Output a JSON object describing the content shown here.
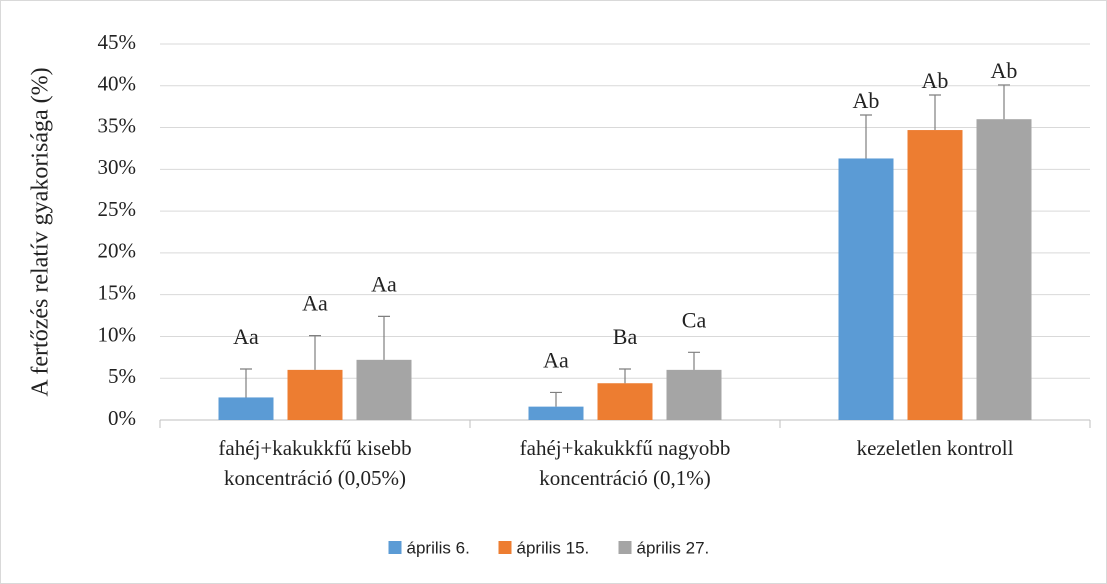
{
  "chart_data": {
    "type": "bar",
    "y_label": "A fertőzés relatív gyakorisága (%)",
    "categories": [
      [
        "fahéj+kakukkfű kisebb",
        "koncentráció (0,05%)"
      ],
      [
        "fahéj+kakukkfű nagyobb",
        "koncentráció (0,1%)"
      ],
      [
        "kezeletlen kontroll"
      ]
    ],
    "series": [
      {
        "name": "április 6.",
        "color": "#5b9bd5",
        "values": [
          2.7,
          1.6,
          31.3
        ],
        "errors": [
          3.4,
          1.7,
          5.2
        ],
        "labels": [
          "Aa",
          "Aa",
          "Ab"
        ]
      },
      {
        "name": "április 15.",
        "color": "#ed7d31",
        "values": [
          6.0,
          4.4,
          34.7
        ],
        "errors": [
          4.1,
          1.7,
          4.2
        ],
        "labels": [
          "Aa",
          "Ba",
          "Ab"
        ]
      },
      {
        "name": "április 27.",
        "color": "#a5a5a5",
        "values": [
          7.2,
          6.0,
          36.0
        ],
        "errors": [
          5.2,
          2.1,
          4.1
        ],
        "labels": [
          "Aa",
          "Ca",
          "Ab"
        ]
      }
    ],
    "ylim": [
      0,
      45
    ],
    "yticks": [
      {
        "value": 0,
        "label": "0%"
      },
      {
        "value": 5,
        "label": "5%"
      },
      {
        "value": 10,
        "label": "10%"
      },
      {
        "value": 15,
        "label": "15%"
      },
      {
        "value": 20,
        "label": "20%"
      },
      {
        "value": 25,
        "label": "25%"
      },
      {
        "value": 30,
        "label": "30%"
      },
      {
        "value": 35,
        "label": "35%"
      },
      {
        "value": 40,
        "label": "40%"
      },
      {
        "value": 45,
        "label": "45%"
      }
    ],
    "grid": true,
    "legend": "bottom"
  }
}
